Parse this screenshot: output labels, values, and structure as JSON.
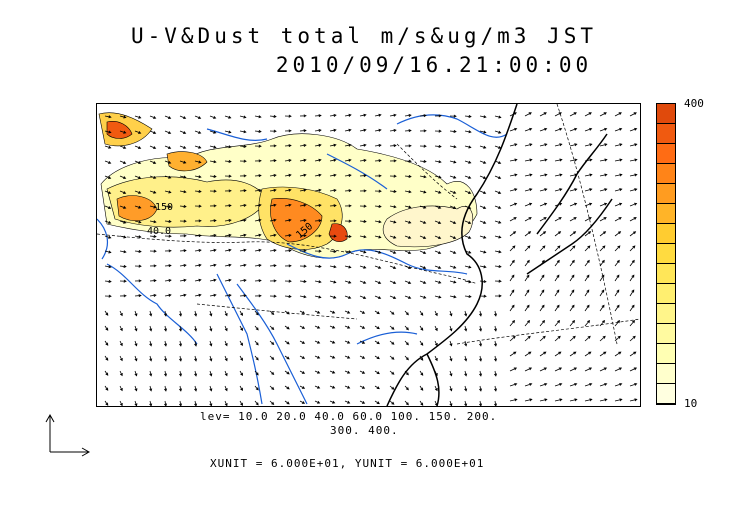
{
  "title": {
    "line1": "U-V&Dust total m/s&ug/m3 JST",
    "line2": "2010/09/16.21:00:00"
  },
  "map": {
    "contour_labels": [
      "150",
      "40.0",
      "150"
    ]
  },
  "colorbar": {
    "max_label": "400",
    "min_label": "10",
    "colors": [
      "#ffffe0",
      "#ffffcc",
      "#ffffb3",
      "#fffaa0",
      "#fff58a",
      "#ffef70",
      "#ffe658",
      "#ffdb40",
      "#ffcc30",
      "#ffb428",
      "#ff9c20",
      "#ff8418",
      "#ff6c14",
      "#f05a10",
      "#e04a0c"
    ]
  },
  "legend": {
    "lev_line1": "lev= 10.0 20.0 40.0 60.0 100. 150. 200.",
    "lev_line2": "300. 400.",
    "units": "XUNIT = 6.000E+01, YUNIT = 6.000E+01"
  },
  "colors": {
    "river": "#1a5fd6",
    "coast": "#000000",
    "dust_low": "#ffffc8",
    "dust_high": "#e84a10"
  }
}
